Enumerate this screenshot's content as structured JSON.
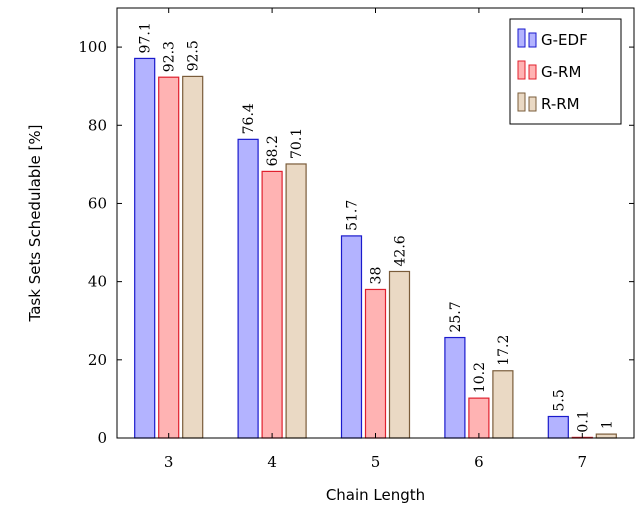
{
  "chart_data": {
    "type": "bar",
    "xlabel": "Chain Length",
    "ylabel": "Task Sets Schedulable [%]",
    "categories": [
      "3",
      "4",
      "5",
      "6",
      "7"
    ],
    "ylim": [
      0,
      110
    ],
    "yticks": [
      0,
      20,
      40,
      60,
      80,
      100
    ],
    "grid": false,
    "legend_position": "top-right",
    "series": [
      {
        "name": "G-EDF",
        "values": [
          97.1,
          76.4,
          51.7,
          25.7,
          5.5
        ],
        "labels": [
          "97.1",
          "76.4",
          "51.7",
          "25.7",
          "5.5"
        ],
        "fill": "#b3b3ff",
        "stroke": "#1a1acc"
      },
      {
        "name": "G-RM",
        "values": [
          92.3,
          68.2,
          38,
          10.2,
          0.1
        ],
        "labels": [
          "92.3",
          "68.2",
          "38",
          "10.2",
          "0.1"
        ],
        "fill": "#ffb3b3",
        "stroke": "#e0202e"
      },
      {
        "name": "R-RM",
        "values": [
          92.5,
          70.1,
          42.6,
          17.2,
          1
        ],
        "labels": [
          "92.5",
          "70.1",
          "42.6",
          "17.2",
          "1"
        ],
        "fill": "#ead9c4",
        "stroke": "#7a5c3a"
      }
    ]
  }
}
